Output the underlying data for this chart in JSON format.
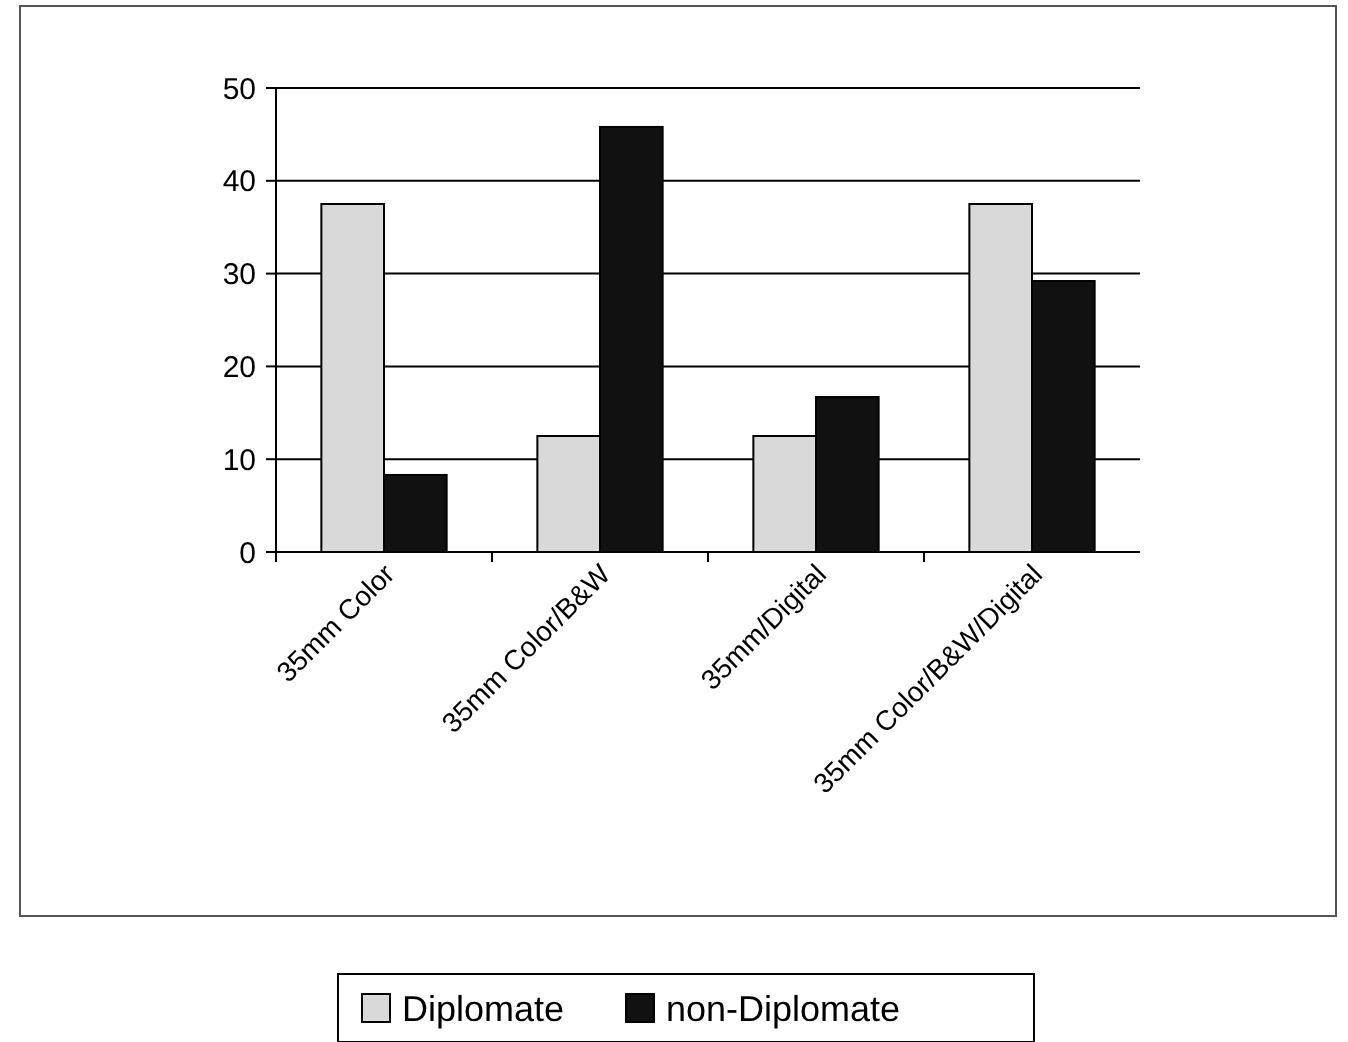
{
  "chart_data": {
    "type": "bar",
    "categories": [
      "35mm Color",
      "35mm Color/B&W",
      "35mm/Digital",
      "35mm Color/B&W/Digital"
    ],
    "series": [
      {
        "name": "Diplomate",
        "color": "#d9d9d9",
        "values": [
          37.5,
          12.5,
          12.5,
          37.5
        ]
      },
      {
        "name": "non-Diplomate",
        "color": "#111111",
        "values": [
          8.3,
          45.8,
          16.7,
          29.2
        ]
      }
    ],
    "ylim": [
      0,
      50
    ],
    "yticks": [
      0,
      10,
      20,
      30,
      40,
      50
    ],
    "grid": "y",
    "legend": "bottom"
  }
}
